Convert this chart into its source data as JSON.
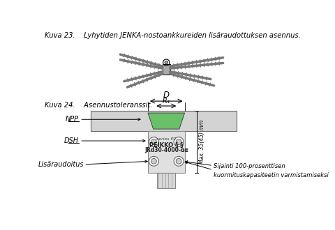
{
  "bg_color": "#ffffff",
  "fig23_caption": "Kuva 23.    Lyhytiden JENKA-nostoankkureiden lisäraudottuksen asennus.",
  "fig24_caption": "Kuva 24.    Asennustoleranssit.",
  "label_npp": "NPP",
  "label_dsh": "DSH",
  "label_lisaraudoitus": "Lisäraudoitus",
  "label_D": "D",
  "label_Rd": "R₄",
  "label_max": "Max. 35(45) mm",
  "label_sijainti": "Sijainti 100-prosenttisen\nkuormituskapasiteetin varmistamiseksi",
  "label_peikko_top": "series P2",
  "label_peikko_mid": "PEIKKO § §",
  "label_peikko_bot": "JRd30-4000-αα",
  "green_color": "#6abf69",
  "light_gray": "#d3d3d3",
  "mid_gray": "#aaaaaa",
  "dark_gray": "#666666",
  "body_color": "#c8c8c8",
  "anchor_body": "#e0e0e0"
}
